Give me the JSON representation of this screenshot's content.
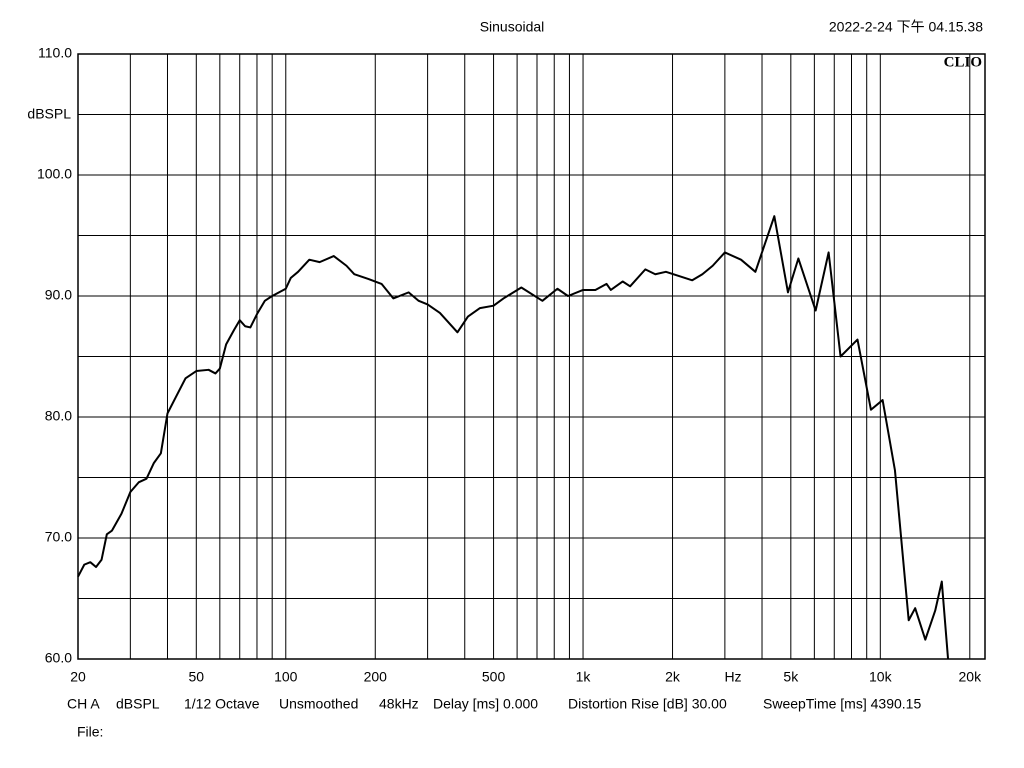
{
  "chart_data": {
    "type": "line",
    "title": "Sinusoidal",
    "timestamp": "2022-2-24 下午 04.15.38",
    "brand": "CLIO",
    "y_label": "dBSPL",
    "x_label": "Hz",
    "x_scale": "log",
    "grid": true,
    "color": "#000000",
    "xlim": [
      20,
      22500
    ],
    "ylim": [
      60,
      110
    ],
    "xticks": [
      {
        "value": 20,
        "label": "20"
      },
      {
        "value": 50,
        "label": "50"
      },
      {
        "value": 100,
        "label": "100"
      },
      {
        "value": 200,
        "label": "200"
      },
      {
        "value": 500,
        "label": "500"
      },
      {
        "value": 1000,
        "label": "1k"
      },
      {
        "value": 2000,
        "label": "2k"
      },
      {
        "value": 5000,
        "label": "5k"
      },
      {
        "value": 10000,
        "label": "10k"
      },
      {
        "value": 20000,
        "label": "20k"
      }
    ],
    "x_minor_gridlines": [
      30,
      40,
      60,
      70,
      80,
      90,
      300,
      400,
      600,
      700,
      800,
      900,
      3000,
      4000,
      6000,
      7000,
      8000,
      9000
    ],
    "yticks": [
      {
        "value": 60,
        "label": "60.0"
      },
      {
        "value": 70,
        "label": "70.0"
      },
      {
        "value": 80,
        "label": "80.0"
      },
      {
        "value": 90,
        "label": "90.0"
      },
      {
        "value": 100,
        "label": "100.0"
      },
      {
        "value": 110,
        "label": "110.0"
      }
    ],
    "y_minor_gridlines": [
      65,
      75,
      85,
      95,
      105
    ],
    "x": [
      20,
      21,
      22,
      23,
      24,
      25,
      26,
      28,
      30,
      32,
      34,
      36,
      38,
      40,
      43,
      46,
      50,
      55,
      58,
      60,
      63,
      67,
      70,
      73,
      76,
      80,
      85,
      90,
      100,
      104,
      110,
      120,
      130,
      145,
      160,
      170,
      190,
      210,
      230,
      259,
      280,
      300,
      330,
      378,
      410,
      450,
      500,
      540,
      620,
      730,
      820,
      890,
      1000,
      1100,
      1200,
      1240,
      1360,
      1440,
      1620,
      1750,
      1900,
      2330,
      2520,
      2730,
      3000,
      3400,
      3800,
      4400,
      4890,
      5300,
      6060,
      6700,
      7350,
      8380,
      9300,
      10180,
      11200,
      12460,
      13100,
      14170,
      15300,
      16100,
      16900
    ],
    "values": [
      66.8,
      67.8,
      68.0,
      67.6,
      68.2,
      70.3,
      70.6,
      72.0,
      73.8,
      74.6,
      74.9,
      76.2,
      77.0,
      80.3,
      81.8,
      83.2,
      83.8,
      83.9,
      83.6,
      84.0,
      86.0,
      87.2,
      88.0,
      87.5,
      87.4,
      88.5,
      89.6,
      90.0,
      90.6,
      91.5,
      92.0,
      93.0,
      92.8,
      93.3,
      92.5,
      91.8,
      91.4,
      91.0,
      89.8,
      90.3,
      89.6,
      89.3,
      88.6,
      87.0,
      88.3,
      89.0,
      89.2,
      89.8,
      90.7,
      89.6,
      90.6,
      90.0,
      90.5,
      90.5,
      91.0,
      90.5,
      91.2,
      90.8,
      92.2,
      91.8,
      92.0,
      91.3,
      91.8,
      92.5,
      93.6,
      93.0,
      92.0,
      96.6,
      90.3,
      93.1,
      88.8,
      93.6,
      85.0,
      86.4,
      80.6,
      81.4,
      75.6,
      63.2,
      64.2,
      61.6,
      64.0,
      66.4,
      60.0
    ]
  },
  "footer": {
    "items": [
      "CH A",
      "dBSPL",
      "1/12 Octave",
      "Unsmoothed",
      "48kHz",
      "Delay [ms] 0.000",
      "Distortion Rise [dB] 30.00",
      "SweepTime [ms] 4390.15"
    ],
    "file": "File:"
  }
}
